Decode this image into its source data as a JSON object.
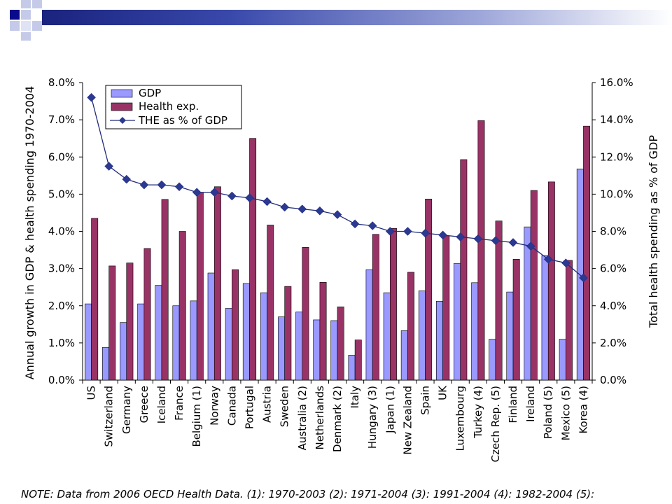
{
  "chart_data": {
    "type": "bar",
    "categories": [
      "US",
      "Switzerland",
      "Germany",
      "Greece",
      "Iceland",
      "France",
      "Belgium (1)",
      "Norway",
      "Canada",
      "Portugal",
      "Austria",
      "Sweden",
      "Australia (2)",
      "Netherlands",
      "Denmark (2)",
      "Italy",
      "Hungary (3)",
      "Japan (1)",
      "New Zealand",
      "Spain",
      "UK",
      "Luxembourg",
      "Turkey (4)",
      "Czech Rep. (5)",
      "Finland",
      "Ireland",
      "Poland (5)",
      "Mexico (5)",
      "Korea (4)"
    ],
    "series": [
      {
        "name": "GDP",
        "kind": "bar",
        "axis": "left",
        "color": "#9999ff",
        "values": [
          2.05,
          0.88,
          1.55,
          2.05,
          2.55,
          2.0,
          2.13,
          2.88,
          1.93,
          2.6,
          2.35,
          1.7,
          1.83,
          1.62,
          1.6,
          0.67,
          2.97,
          2.35,
          1.33,
          2.4,
          2.12,
          3.14,
          2.62,
          1.1,
          2.37,
          4.12,
          3.35,
          1.1,
          5.68
        ]
      },
      {
        "name": "Health exp.",
        "kind": "bar",
        "axis": "left",
        "color": "#993366",
        "values": [
          4.35,
          3.07,
          3.15,
          3.54,
          4.86,
          4.0,
          5.05,
          5.2,
          2.97,
          6.5,
          4.17,
          2.52,
          3.57,
          2.63,
          1.97,
          1.08,
          3.92,
          4.08,
          2.9,
          4.87,
          3.88,
          5.93,
          6.98,
          4.28,
          3.25,
          5.1,
          5.33,
          3.22,
          6.83
        ]
      },
      {
        "name": "THE as % of GDP",
        "kind": "line",
        "axis": "right",
        "color": "#1f2a7a",
        "values": [
          15.2,
          11.5,
          10.8,
          10.5,
          10.5,
          10.4,
          10.1,
          10.1,
          9.9,
          9.8,
          9.6,
          9.3,
          9.2,
          9.1,
          8.9,
          8.4,
          8.3,
          8.0,
          8.0,
          7.9,
          7.8,
          7.7,
          7.6,
          7.5,
          7.4,
          7.2,
          6.5,
          6.3,
          5.5
        ]
      }
    ],
    "ylabel": "Annual growth in GDP & health spending 1970-2004",
    "y2label": "Total health spending as % of GDP",
    "ylim": [
      0,
      8
    ],
    "y2lim": [
      0,
      16
    ],
    "yticks": [
      "0.0%",
      "1.0%",
      "2.0%",
      "3.0%",
      "4.0%",
      "5.0%",
      "6.0%",
      "7.0%",
      "8.0%"
    ],
    "y2ticks": [
      "0.0%",
      "2.0%",
      "4.0%",
      "6.0%",
      "8.0%",
      "10.0%",
      "12.0%",
      "14.0%",
      "16.0%"
    ],
    "legend": [
      "GDP",
      "Health exp.",
      "THE as % of GDP"
    ],
    "legend_position": "top-left",
    "grid": false
  },
  "note": "NOTE: Data from 2006 OECD Health Data. (1): 1970-2003   (2): 1971-2004   (3): 1991-2004  (4): 1982-2004  (5):"
}
